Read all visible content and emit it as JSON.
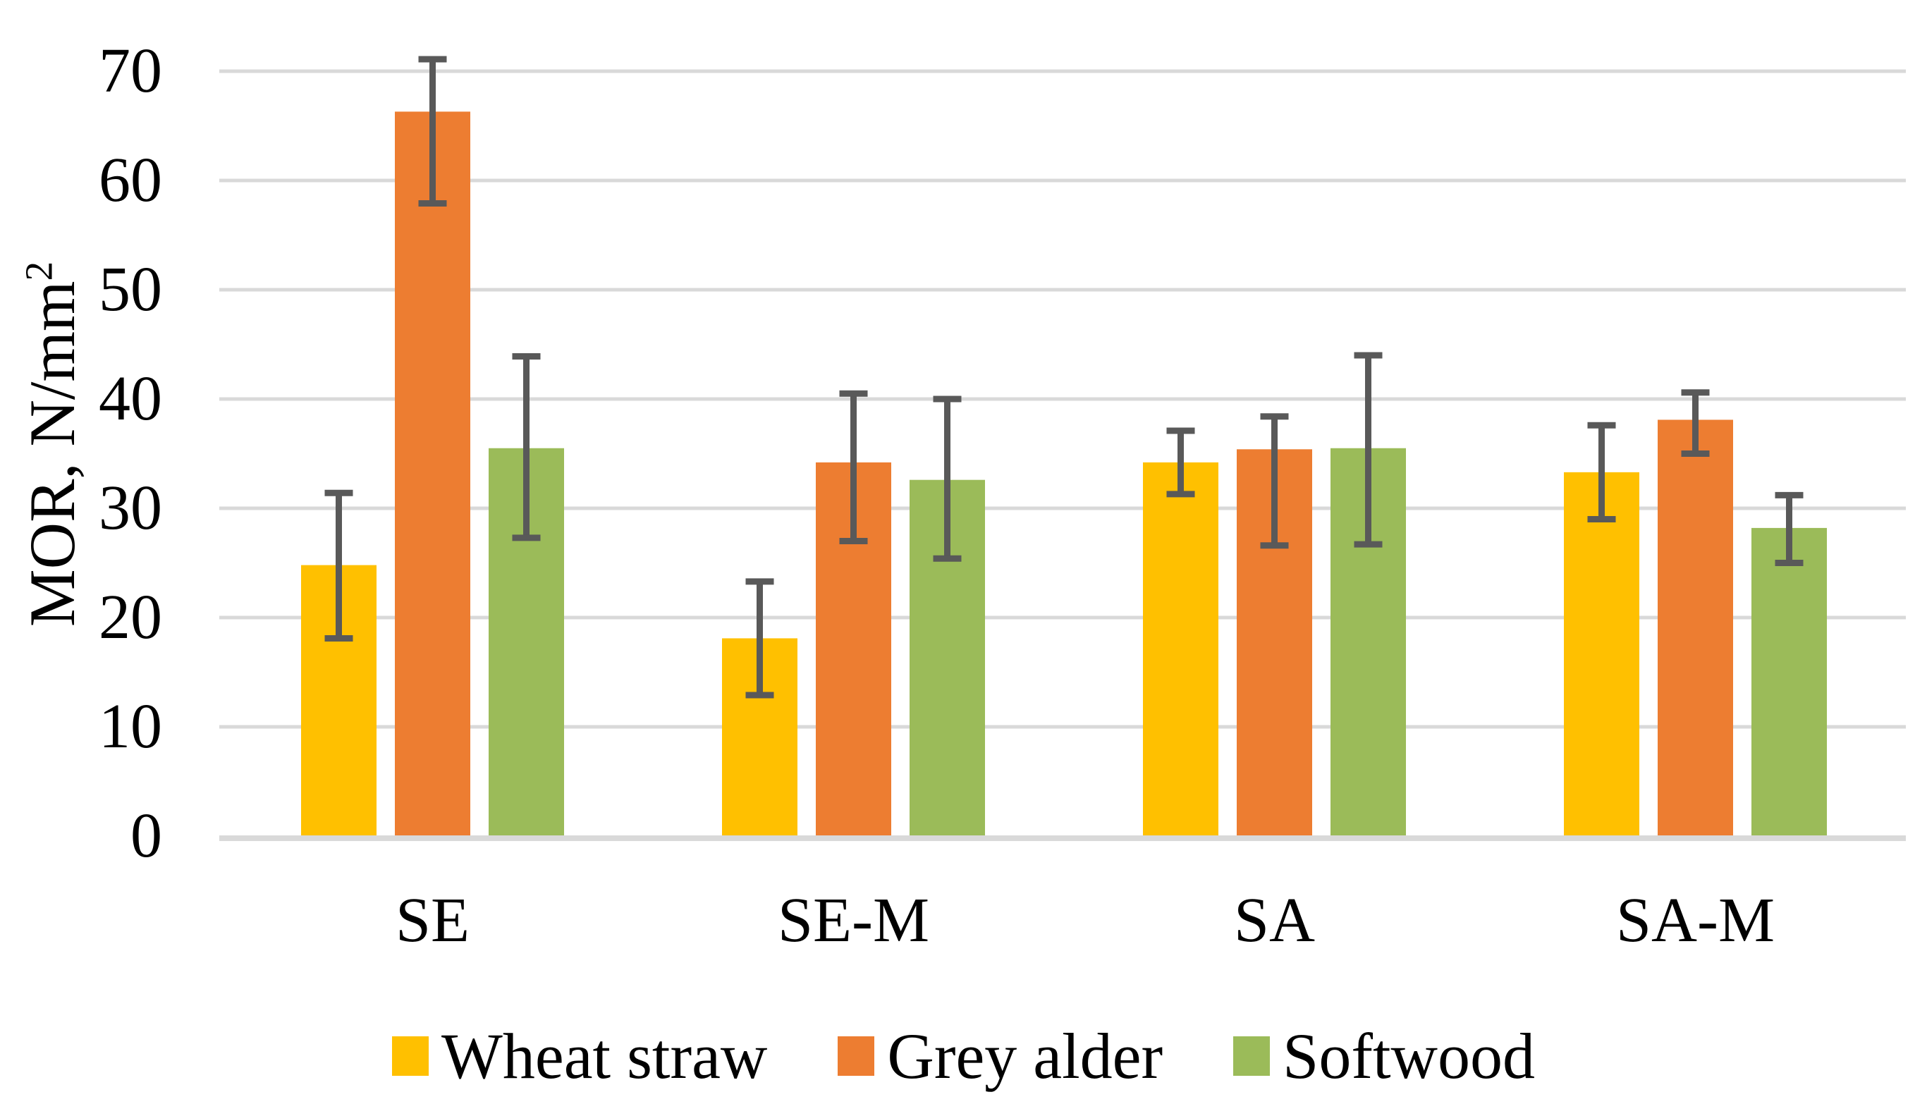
{
  "figure": {
    "background": "#FFFFFF",
    "text_color": "#000000",
    "axis_title": {
      "main": "MOR, N/mm",
      "superscript": "2"
    }
  },
  "chart_data": {
    "type": "bar",
    "title": "",
    "xlabel": "",
    "ylabel": "MOR, N/mm²",
    "categories": [
      "SE",
      "SE-M",
      "SA",
      "SA-M"
    ],
    "y_axis": {
      "min": 0,
      "max": 75,
      "major_unit": 10,
      "ticks": [
        0,
        10,
        20,
        30,
        40,
        50,
        60,
        70
      ]
    },
    "grid": true,
    "legend_position": "bottom",
    "series": [
      {
        "name": "Wheat straw",
        "color": "#FFC000",
        "values": [
          24.8,
          18.1,
          34.2,
          33.3
        ],
        "error_low": [
          18.1,
          12.9,
          31.3,
          29.0
        ],
        "error_high": [
          31.4,
          23.3,
          37.1,
          37.6
        ]
      },
      {
        "name": "Grey alder",
        "color": "#ED7D31",
        "values": [
          66.3,
          34.2,
          35.4,
          38.1
        ],
        "error_low": [
          57.9,
          27.0,
          26.6,
          35.0
        ],
        "error_high": [
          71.1,
          40.5,
          38.4,
          40.6
        ]
      },
      {
        "name": "Softwood",
        "color": "#9BBB59",
        "values": [
          35.5,
          32.6,
          35.5,
          28.2
        ],
        "error_low": [
          27.3,
          25.4,
          26.7,
          25.0
        ],
        "error_high": [
          43.9,
          40.0,
          44.0,
          31.2
        ]
      }
    ],
    "error_bar_color": "#595959",
    "gridline_color": "#D9D9D9",
    "axis_line_color": "#D9D9D9"
  }
}
